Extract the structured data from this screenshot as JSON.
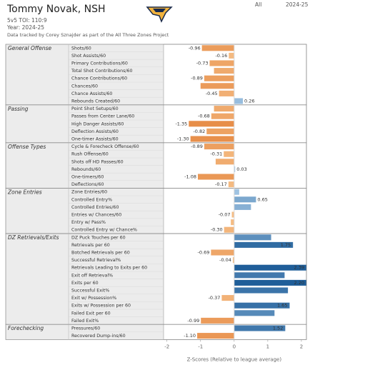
{
  "chart_data": {
    "type": "bar",
    "orientation": "horizontal",
    "title": "Tommy Novak, NSH",
    "subtitles": [
      "5v5 TOI: 110:9",
      "Year: 2024-25",
      "Data tracked by Corey Sznajder as part of the All Three Zones Project"
    ],
    "filters": [
      "All",
      "2024-25"
    ],
    "x_label": "Z-Scores (Relative to league average)",
    "xlim": [
      -2.1,
      2.15
    ],
    "xticks": [
      -2,
      -1,
      0,
      1,
      2
    ],
    "negative_colors": [
      "#f6c089",
      "#e0762a"
    ],
    "positive_colors": [
      "#a9cbe8",
      "#1f5e99"
    ],
    "groups": [
      {
        "name": "General Offense",
        "categories": [
          "Shots/60",
          "Shot Assists/60",
          "Primary Contributions/60",
          "Total Shot Contributions/60",
          "Chance Contributions/60",
          "Chances/60",
          "Chance Assists/60",
          "Rebounds Created/60"
        ],
        "values": [
          -0.96,
          -0.16,
          -0.73,
          -0.6,
          -0.89,
          -1.0,
          -0.45,
          0.26
        ],
        "value_labels": [
          "-0.96",
          "-0.16",
          "-0.73",
          null,
          "-0.89",
          null,
          "-0.45",
          "0.26"
        ]
      },
      {
        "name": "Passing",
        "categories": [
          "Point Shot Setups/60",
          "Passes from Center Lane/60",
          "High Danger Assists/60",
          "Deflection Assists/60",
          "One-timer Assists/60"
        ],
        "values": [
          -0.6,
          -0.68,
          -1.35,
          -0.82,
          -1.3
        ],
        "value_labels": [
          null,
          "-0.68",
          "-1.35",
          "-0.82",
          "-1.30"
        ]
      },
      {
        "name": "Offense Types",
        "categories": [
          "Cycle & Forecheck Offense/60",
          "Rush Offense/60",
          "Shots off HD Passes/60",
          "Rebounds/60",
          "One-timers/60",
          "Deflections/60"
        ],
        "values": [
          -0.89,
          -0.31,
          -0.55,
          0.03,
          -1.08,
          -0.17
        ],
        "value_labels": [
          "-0.89",
          "-0.31",
          null,
          "0.03",
          "-1.08",
          "-0.17"
        ]
      },
      {
        "name": "Zone Entries",
        "categories": [
          "Zone Entries/60",
          "Controlled Entry%",
          "Controlled Entries/60",
          "Entries w/ Chances/60",
          "Entry w/ Pass%",
          "Controlled Entry w/ Chance%"
        ],
        "values": [
          0.15,
          0.65,
          0.5,
          -0.07,
          -0.1,
          -0.3
        ],
        "value_labels": [
          null,
          "0.65",
          null,
          "-0.07",
          null,
          "-0.30"
        ]
      },
      {
        "name": "DZ Retrievals/Exits",
        "categories": [
          "DZ Puck Touches per 60",
          "Retrievals per 60",
          "Botched Retrievals per 60",
          "Successful Retrieval%",
          "Retrievals Leading to Exits per 60",
          "Exit off Retrieval%",
          "Exits per 60",
          "Successful Exit%",
          "Exit w/ Possession%",
          "Exits w/ Possession per 60",
          "Failed Exit per 60",
          "Failed Exit%"
        ],
        "values": [
          1.1,
          1.75,
          -0.69,
          -0.04,
          2.39,
          1.5,
          2.2,
          1.6,
          -0.37,
          1.65,
          1.2,
          -0.99
        ],
        "value_labels": [
          null,
          "1.75",
          "-0.69",
          "-0.04",
          "2.39",
          null,
          "2.20",
          null,
          "-0.37",
          "1.65",
          null,
          "-0.99"
        ]
      },
      {
        "name": "Forechecking",
        "categories": [
          "Pressures/60",
          "Recovered Dump-ins/60"
        ],
        "values": [
          1.52,
          -1.1
        ],
        "value_labels": [
          "1.52",
          "-1.10"
        ]
      }
    ]
  }
}
